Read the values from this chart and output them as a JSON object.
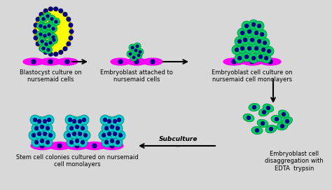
{
  "bg_color": "#d8d8d8",
  "colors": {
    "magenta": "#FF00FF",
    "dark_magenta": "#CC00CC",
    "teal": "#00CCCC",
    "dark_teal": "#008888",
    "green": "#00CC66",
    "dark_green": "#009944",
    "navy": "#000080",
    "yellow": "#FFFF00",
    "dark_yellow": "#CCAA00",
    "black": "#000000"
  },
  "labels": {
    "blastocyst": "Blastocyst culture on\nnursemaid cells",
    "embryoblast_attached": "Embryoblast attached to\nnursemaid cells",
    "embryoblast_culture": "Embryoblast cell culture on\nnursemaid cell monolayers",
    "stem_colonies": "Stem cell colonies cultured on nursemaid\ncell monolayers",
    "subculture": "Subculture\n--",
    "disaggregation": "Embryoblast cell\ndisaggregation with\nEDTA  trypsin"
  },
  "font_size": 6.0
}
